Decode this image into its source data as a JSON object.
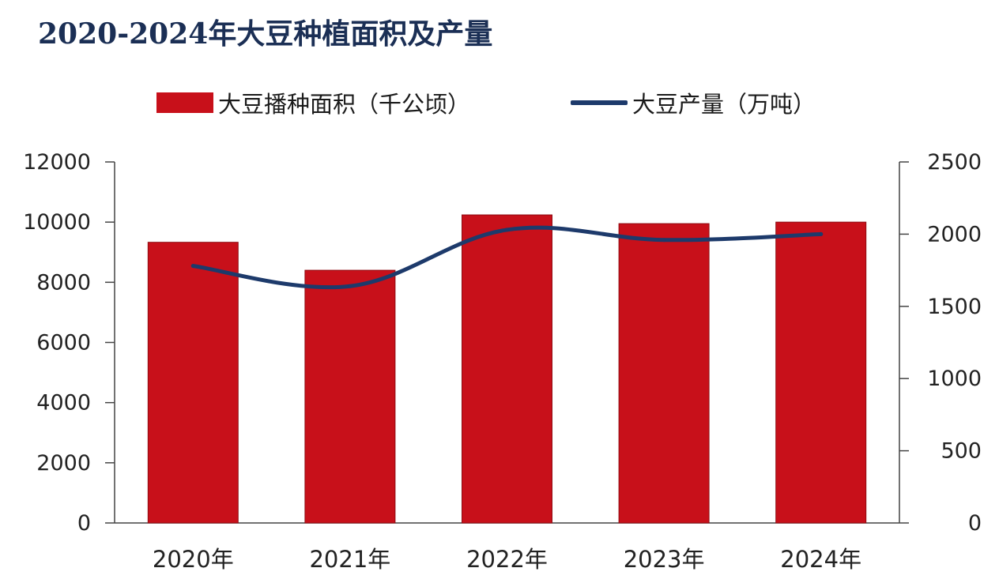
{
  "title": "2020-2024年大豆种植面积及产量",
  "legend": {
    "area": "大豆播种面积（千公顷）",
    "production": "大豆产量（万吨）"
  },
  "colors": {
    "bar": "#c8101a",
    "line": "#1d3a6b",
    "title": "#1b2f55"
  },
  "chart_data": {
    "type": "bar",
    "categories": [
      "2020年",
      "2021年",
      "2022年",
      "2023年",
      "2024年"
    ],
    "series": [
      {
        "name": "大豆播种面积（千公顷）",
        "type": "bar",
        "axis": "left",
        "values": [
          9330,
          8400,
          10240,
          9950,
          10000
        ]
      },
      {
        "name": "大豆产量（万吨）",
        "type": "line",
        "axis": "right",
        "values": [
          1780,
          1640,
          2030,
          1960,
          2000
        ]
      }
    ],
    "left_axis": {
      "ylim": [
        0,
        12000
      ],
      "ticks": [
        "0",
        "2000",
        "4000",
        "6000",
        "8000",
        "10000",
        "12000"
      ]
    },
    "right_axis": {
      "ylim": [
        0,
        2500
      ],
      "ticks": [
        "0",
        "500",
        "1000",
        "1500",
        "2000",
        "2500"
      ]
    },
    "grid": false,
    "legend_position": "top-center"
  }
}
